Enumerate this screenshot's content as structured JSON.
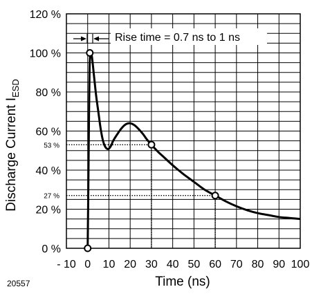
{
  "chart_data": {
    "type": "line",
    "title": "",
    "xlabel": "Time (ns)",
    "ylabel": "Discharge Current  I",
    "ylabel_subscript": "ESD",
    "figure_number": "20557",
    "xlim": [
      -10,
      100
    ],
    "ylim": [
      0,
      120
    ],
    "grid": true,
    "x_ticks": [
      -10,
      0,
      10,
      20,
      30,
      40,
      50,
      60,
      70,
      80,
      90,
      100
    ],
    "x_tick_labels": [
      "- 10",
      "0",
      "10",
      "20",
      "30",
      "40",
      "50",
      "60",
      "70",
      "80",
      "90",
      "100"
    ],
    "y_ticks": [
      0,
      20,
      40,
      60,
      80,
      100,
      120
    ],
    "y_tick_labels": [
      "0 %",
      "20 %",
      "40 %",
      "60 %",
      "80 %",
      "100 %",
      "120 %"
    ],
    "series": [
      {
        "x": [
          0,
          0.3,
          0.6,
          0.9,
          1.3,
          2,
          3,
          4,
          5,
          6,
          7,
          8,
          9,
          10,
          11,
          12,
          14,
          16,
          18,
          20,
          22,
          24,
          26,
          28,
          30,
          33,
          36,
          40,
          45,
          50,
          55,
          60,
          65,
          70,
          75,
          80,
          85,
          90,
          95,
          100
        ],
        "y": [
          0,
          30,
          65,
          92,
          100,
          98,
          88,
          78,
          70,
          62,
          56,
          52.5,
          51,
          51,
          52.5,
          55,
          58.5,
          61.5,
          63.5,
          64,
          63,
          61,
          58.5,
          55.5,
          53,
          49.5,
          46.5,
          42.5,
          38,
          34,
          30,
          27,
          24,
          21.5,
          19.5,
          18,
          17,
          16,
          15.5,
          15
        ]
      }
    ],
    "markers": [
      {
        "x": 0,
        "y": 0
      },
      {
        "x": 1,
        "y": 100
      },
      {
        "x": 30,
        "y": 53
      },
      {
        "x": 60,
        "y": 27
      }
    ],
    "reference_lines": [
      {
        "y": 53,
        "x_end": 30,
        "label": "53 %"
      },
      {
        "y": 27,
        "x_end": 60,
        "label": "27 %"
      }
    ],
    "annotation": "Rise time = 0.7 ns to 1 ns"
  },
  "colors": {
    "line": "#000000",
    "grid": "#000000",
    "background": "#ffffff"
  }
}
